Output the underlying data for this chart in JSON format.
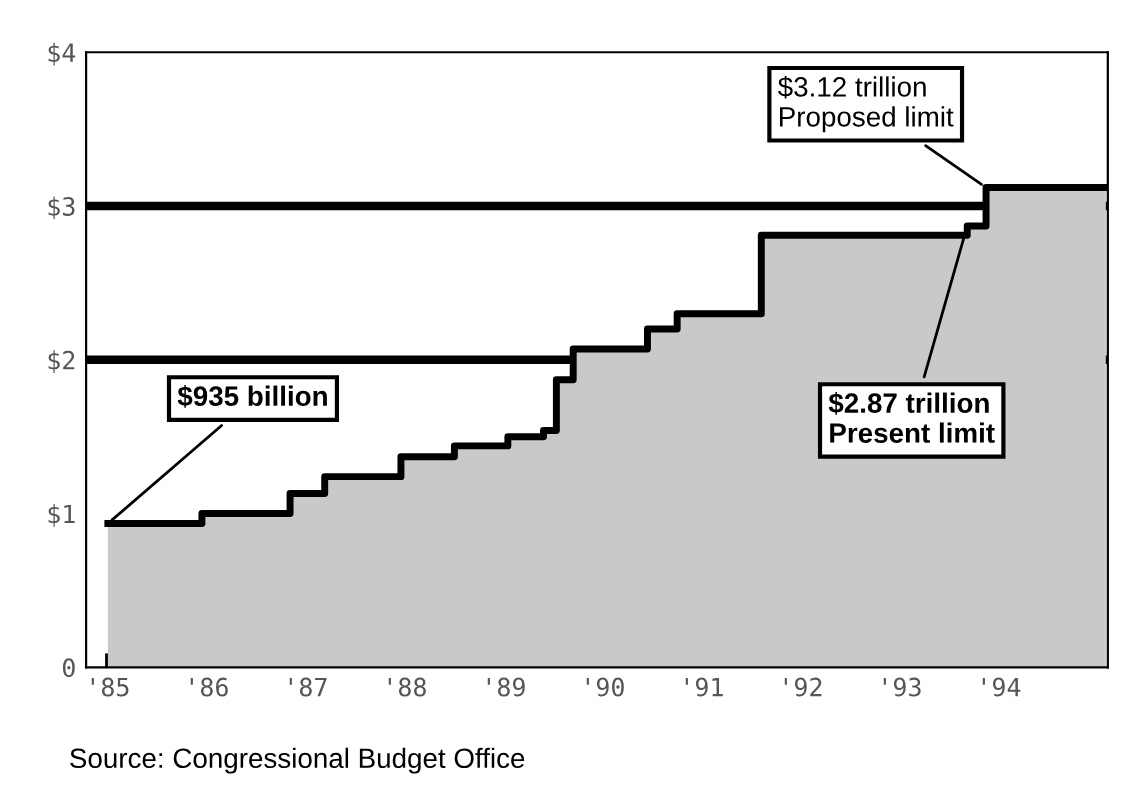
{
  "chart_data": {
    "type": "step",
    "x": [
      1985.0,
      1985.95,
      1986.84,
      1987.19,
      1987.96,
      1988.5,
      1989.04,
      1989.4,
      1989.53,
      1989.7,
      1990.45,
      1990.75,
      1991.6,
      1993.68,
      1993.87,
      1995.08
    ],
    "series": [
      {
        "type": "area",
        "color": "#c9c9c9",
        "values": [
          0.935,
          1.0,
          1.13,
          1.24,
          1.37,
          1.44,
          1.5,
          1.54,
          1.87,
          2.07,
          2.2,
          2.3,
          2.81,
          2.87,
          3.12,
          3.12
        ]
      },
      {
        "color": "#000000",
        "values": [
          0.935,
          1.0,
          1.13,
          1.24,
          1.37,
          1.44,
          1.5,
          1.54,
          1.87,
          2.07,
          2.2,
          2.3,
          2.81,
          2.87,
          3.12,
          3.12
        ]
      }
    ],
    "xlim": [
      1984.78,
      1995.1
    ],
    "ylim": [
      0,
      4
    ],
    "xticks": [
      {
        "value": 1985,
        "label": "'85"
      },
      {
        "value": 1986,
        "label": "'86"
      },
      {
        "value": 1987,
        "label": "'87"
      },
      {
        "value": 1988,
        "label": "'88"
      },
      {
        "value": 1989,
        "label": "'89"
      },
      {
        "value": 1990,
        "label": "'90"
      },
      {
        "value": 1991,
        "label": "'91"
      },
      {
        "value": 1992,
        "label": "'92"
      },
      {
        "value": 1993,
        "label": "'93"
      },
      {
        "value": 1994,
        "label": "'94"
      }
    ],
    "yticks": [
      0,
      {
        "value": 1,
        "label": "$1"
      },
      {
        "value": 2,
        "label": "$2"
      },
      {
        "value": 3,
        "label": "$3"
      },
      {
        "value": 4,
        "label": "$4"
      }
    ],
    "ref_lines": [
      {
        "axis": "y",
        "value": 2,
        "color": "#000000"
      },
      {
        "axis": "y",
        "value": 3,
        "color": "#000000"
      }
    ],
    "grid": false,
    "legend": false,
    "annotations": [
      {
        "text": "$935 billion",
        "x": 1985.0,
        "y": 0.935
      },
      {
        "text": "$3.12 trillion\nProposed limit",
        "x": 1993.87,
        "y": 3.12
      },
      {
        "text": "$2.87 trillion\nPresent limit",
        "x": 1993.68,
        "y": 2.87
      },
      "Source: Congressional Budget Office"
    ]
  }
}
